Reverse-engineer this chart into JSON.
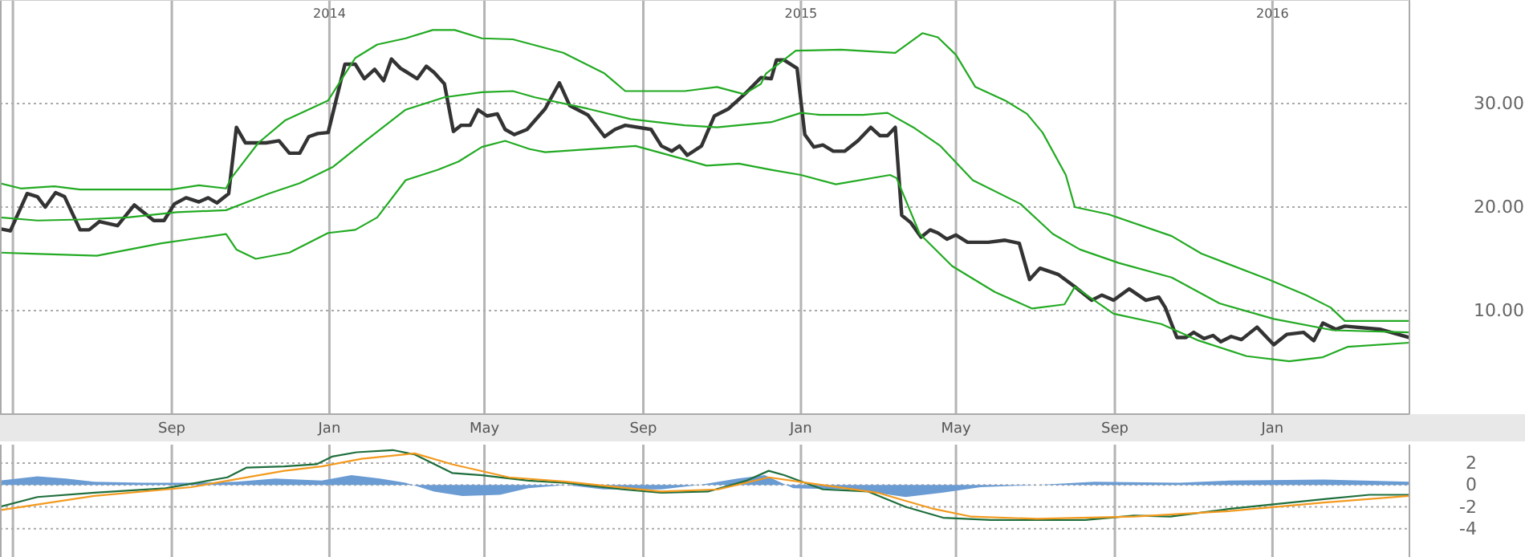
{
  "chart_data": [
    {
      "type": "line",
      "xlim": [
        "2013-04-21",
        "2016-04-16"
      ],
      "ylim": [
        0,
        40
      ],
      "xticks": [
        {
          "value": "2013-05-01",
          "label": null
        },
        {
          "value": "2013-09-01",
          "label": "Sep"
        },
        {
          "value": "2014-01-01",
          "label": "Jan"
        },
        {
          "value": "2014-05-01",
          "label": "May"
        },
        {
          "value": "2014-09-01",
          "label": "Sep"
        },
        {
          "value": "2015-01-01",
          "label": "Jan"
        },
        {
          "value": "2015-05-01",
          "label": "May"
        },
        {
          "value": "2015-09-01",
          "label": "Sep"
        },
        {
          "value": "2016-01-01",
          "label": "Jan"
        }
      ],
      "x2lim": [
        "2013-04-21",
        "2016-04-16"
      ],
      "x2ticks": [
        {
          "value": "2014-01-01",
          "label": "2014"
        },
        {
          "value": "2015-01-01",
          "label": "2015"
        },
        {
          "value": "2016-01-01",
          "label": "2016"
        }
      ],
      "yticks": [
        {
          "value": 10,
          "label": "10.00"
        },
        {
          "value": 20,
          "label": "20.00"
        },
        {
          "value": 30,
          "label": "30.00"
        }
      ],
      "grid": true,
      "series": [
        {
          "color": "#333333",
          "x": [
            "2013-04-21",
            "2013-04-29",
            "2013-05-12",
            "2013-05-20",
            "2013-05-26",
            "2013-06-03",
            "2013-06-10",
            "2013-06-22",
            "2013-06-29",
            "2013-07-07",
            "2013-07-21",
            "2013-08-03",
            "2013-08-18",
            "2013-08-26",
            "2013-09-03",
            "2013-09-12",
            "2013-09-22",
            "2013-09-29",
            "2013-10-06",
            "2013-10-15",
            "2013-10-21",
            "2013-10-28",
            "2013-11-13",
            "2013-11-23",
            "2013-12-01",
            "2013-12-09",
            "2013-12-16",
            "2013-12-23",
            "2013-12-31",
            "2014-01-13",
            "2014-01-21",
            "2014-01-28",
            "2014-02-05",
            "2014-02-12",
            "2014-02-18",
            "2014-02-25",
            "2014-03-01",
            "2014-03-10",
            "2014-03-17",
            "2014-03-23",
            "2014-03-31",
            "2014-04-07",
            "2014-04-13",
            "2014-04-20",
            "2014-04-26",
            "2014-05-03",
            "2014-05-11",
            "2014-05-17",
            "2014-05-24",
            "2014-06-03",
            "2014-06-17",
            "2014-06-28",
            "2014-07-06",
            "2014-07-20",
            "2014-08-02",
            "2014-08-10",
            "2014-08-18",
            "2014-09-07",
            "2014-09-15",
            "2014-09-23",
            "2014-09-29",
            "2014-10-05",
            "2014-10-16",
            "2014-10-26",
            "2014-11-06",
            "2014-11-20",
            "2014-12-01",
            "2014-12-09",
            "2014-12-13",
            "2014-12-19",
            "2014-12-29",
            "2015-01-04",
            "2015-01-11",
            "2015-01-18",
            "2015-01-26",
            "2015-02-04",
            "2015-02-14",
            "2015-02-24",
            "2015-03-03",
            "2015-03-09",
            "2015-03-15",
            "2015-03-20",
            "2015-03-27",
            "2015-04-04",
            "2015-04-11",
            "2015-04-17",
            "2015-04-24",
            "2015-05-01",
            "2015-05-10",
            "2015-05-26",
            "2015-06-08",
            "2015-06-19",
            "2015-06-27",
            "2015-07-05",
            "2015-07-19",
            "2015-08-01",
            "2015-08-14",
            "2015-08-22",
            "2015-08-31",
            "2015-09-12",
            "2015-09-25",
            "2015-10-05",
            "2015-10-10",
            "2015-10-19",
            "2015-10-26",
            "2015-11-01",
            "2015-11-09",
            "2015-11-16",
            "2015-11-22",
            "2015-11-30",
            "2015-12-08",
            "2015-12-20",
            "2016-01-02",
            "2016-01-12",
            "2016-01-25",
            "2016-02-02",
            "2016-02-09",
            "2016-02-19",
            "2016-02-26",
            "2016-03-24",
            "2016-04-16"
          ],
          "values": [
            17.9,
            17.7,
            21.3,
            21.0,
            20.0,
            21.4,
            21.0,
            17.8,
            17.8,
            18.6,
            18.2,
            20.2,
            18.7,
            18.7,
            20.3,
            20.9,
            20.5,
            20.9,
            20.4,
            21.3,
            27.7,
            26.2,
            26.2,
            26.4,
            25.2,
            25.2,
            26.8,
            27.1,
            27.2,
            33.8,
            33.8,
            32.4,
            33.3,
            32.2,
            34.3,
            33.4,
            33.1,
            32.4,
            33.6,
            33.0,
            31.9,
            27.3,
            27.9,
            27.9,
            29.4,
            28.8,
            29.0,
            27.5,
            27.0,
            27.5,
            29.5,
            32.0,
            29.8,
            28.9,
            26.8,
            27.5,
            27.9,
            27.5,
            25.9,
            25.4,
            25.9,
            25.0,
            25.9,
            28.8,
            29.5,
            31.1,
            32.5,
            32.4,
            34.2,
            34.2,
            33.4,
            27.0,
            25.8,
            26.0,
            25.4,
            25.4,
            26.4,
            27.7,
            26.9,
            26.9,
            27.7,
            19.2,
            18.5,
            17.1,
            17.8,
            17.5,
            16.9,
            17.3,
            16.6,
            16.6,
            16.8,
            16.5,
            13.0,
            14.1,
            13.5,
            12.3,
            11.0,
            11.5,
            11.0,
            12.1,
            11.0,
            11.3,
            10.3,
            7.4,
            7.4,
            7.9,
            7.3,
            7.6,
            7.0,
            7.5,
            7.2,
            8.4,
            6.7,
            7.7,
            7.9,
            7.1,
            8.8,
            8.2,
            8.5,
            8.2,
            7.4
          ]
        },
        {
          "color": "#22aa22",
          "x": [
            "2013-04-21",
            "2013-05-07",
            "2013-06-02",
            "2013-06-22",
            "2013-09-01",
            "2013-09-22",
            "2013-10-13",
            "2013-10-17",
            "2013-11-07",
            "2013-11-28",
            "2013-12-31",
            "2014-01-21",
            "2014-02-07",
            "2014-03-01",
            "2014-03-22",
            "2014-04-08",
            "2014-04-29",
            "2014-05-23",
            "2014-07-01",
            "2014-08-02",
            "2014-08-18",
            "2014-10-03",
            "2014-10-28",
            "2014-11-18",
            "2014-12-01",
            "2014-12-05",
            "2014-12-28",
            "2015-02-01",
            "2015-03-15",
            "2015-04-05",
            "2015-04-17",
            "2015-05-01",
            "2015-05-16",
            "2015-06-08",
            "2015-06-25",
            "2015-07-07",
            "2015-07-25",
            "2015-08-01",
            "2015-08-27",
            "2015-10-15",
            "2015-11-07",
            "2015-12-29",
            "2016-01-27",
            "2016-02-15",
            "2016-02-26",
            "2016-04-16"
          ],
          "values": [
            22.3,
            21.8,
            22.0,
            21.7,
            21.7,
            22.1,
            21.8,
            22.8,
            26.2,
            28.4,
            30.3,
            34.4,
            35.7,
            36.3,
            37.1,
            37.1,
            36.3,
            36.2,
            34.9,
            32.9,
            31.2,
            31.2,
            31.6,
            30.9,
            31.9,
            32.9,
            35.1,
            35.2,
            34.9,
            36.8,
            36.4,
            34.7,
            31.6,
            30.3,
            29.0,
            27.2,
            23.1,
            20.0,
            19.3,
            17.2,
            15.5,
            13.0,
            11.5,
            10.3,
            9.0,
            9.0
          ]
        },
        {
          "color": "#22aa22",
          "x": [
            "2013-04-21",
            "2013-05-20",
            "2013-06-22",
            "2013-07-29",
            "2013-09-05",
            "2013-10-13",
            "2013-11-15",
            "2013-12-09",
            "2014-01-04",
            "2014-01-29",
            "2014-03-01",
            "2014-03-31",
            "2014-04-29",
            "2014-05-23",
            "2014-06-09",
            "2014-07-20",
            "2014-08-22",
            "2014-10-03",
            "2014-10-28",
            "2014-12-09",
            "2015-01-01",
            "2015-01-16",
            "2015-02-18",
            "2015-03-09",
            "2015-03-29",
            "2015-04-19",
            "2015-05-14",
            "2015-06-20",
            "2015-07-15",
            "2015-08-05",
            "2015-09-04",
            "2015-10-15",
            "2015-11-21",
            "2016-01-02",
            "2016-02-17",
            "2016-04-16"
          ],
          "values": [
            19.0,
            18.7,
            18.8,
            19.0,
            19.5,
            19.7,
            21.3,
            22.3,
            23.9,
            26.4,
            29.4,
            30.6,
            31.1,
            31.2,
            30.6,
            29.5,
            28.5,
            27.9,
            27.7,
            28.2,
            29.1,
            28.9,
            28.9,
            29.1,
            27.7,
            25.9,
            22.6,
            20.3,
            17.4,
            15.9,
            14.6,
            13.2,
            10.7,
            9.2,
            8.1,
            7.9
          ]
        },
        {
          "color": "#22aa22",
          "x": [
            "2013-04-21",
            "2013-05-16",
            "2013-07-05",
            "2013-08-24",
            "2013-10-13",
            "2013-10-21",
            "2013-11-05",
            "2013-12-01",
            "2013-12-31",
            "2014-01-21",
            "2014-02-07",
            "2014-03-01",
            "2014-03-26",
            "2014-04-11",
            "2014-04-29",
            "2014-05-17",
            "2014-06-05",
            "2014-06-17",
            "2014-08-26",
            "2014-10-03",
            "2014-10-20",
            "2014-11-14",
            "2014-12-09",
            "2015-01-01",
            "2015-01-28",
            "2015-03-11",
            "2015-03-16",
            "2015-04-03",
            "2015-04-28",
            "2015-05-31",
            "2015-06-29",
            "2015-07-24",
            "2015-08-01",
            "2015-08-31",
            "2015-10-07",
            "2015-11-05",
            "2015-12-12",
            "2016-01-14",
            "2016-02-09",
            "2016-02-28",
            "2016-04-16"
          ],
          "values": [
            15.6,
            15.5,
            15.3,
            16.5,
            17.4,
            15.9,
            15.0,
            15.6,
            17.5,
            17.8,
            19.0,
            22.6,
            23.6,
            24.4,
            25.8,
            26.4,
            25.6,
            25.3,
            25.9,
            24.6,
            24.0,
            24.2,
            23.6,
            23.1,
            22.2,
            23.1,
            22.8,
            17.4,
            14.3,
            11.8,
            10.2,
            10.6,
            12.3,
            9.7,
            8.7,
            7.1,
            5.6,
            5.1,
            5.5,
            6.5,
            6.9
          ]
        }
      ]
    },
    {
      "type": "line",
      "xlim": [
        "2013-04-21",
        "2016-04-16"
      ],
      "ylim": [
        -6.6,
        3.7
      ],
      "xticks": [
        {
          "value": "2013-05-01",
          "label": null
        },
        {
          "value": "2013-09-01",
          "label": null
        },
        {
          "value": "2014-01-01",
          "label": null
        },
        {
          "value": "2014-05-01",
          "label": null
        },
        {
          "value": "2014-09-01",
          "label": null
        },
        {
          "value": "2015-01-01",
          "label": null
        },
        {
          "value": "2015-05-01",
          "label": null
        },
        {
          "value": "2015-09-01",
          "label": null
        },
        {
          "value": "2016-01-01",
          "label": null
        }
      ],
      "yticks": [
        -4,
        -2,
        0,
        2
      ],
      "grid": true,
      "tick_labels": "y",
      "series": [
        {
          "type": "area",
          "color": "#6a9bd3",
          "x": [
            "2013-04-21",
            "2013-05-20",
            "2013-06-11",
            "2013-07-03",
            "2013-08-09",
            "2013-09-16",
            "2013-10-21",
            "2013-11-20",
            "2013-12-26",
            "2014-01-18",
            "2014-02-09",
            "2014-03-01",
            "2014-03-23",
            "2014-04-14",
            "2014-05-13",
            "2014-06-04",
            "2014-07-03",
            "2014-08-01",
            "2014-09-15",
            "2014-10-14",
            "2014-11-13",
            "2014-12-04",
            "2014-12-26",
            "2015-02-09",
            "2015-03-23",
            "2015-04-21",
            "2015-05-20",
            "2015-07-03",
            "2015-08-16",
            "2015-10-21",
            "2015-11-28",
            "2016-02-10",
            "2016-04-16"
          ],
          "values": [
            0.4,
            0.8,
            0.6,
            0.3,
            0.2,
            0.2,
            0.3,
            0.6,
            0.4,
            0.9,
            0.6,
            0.2,
            -0.6,
            -1.0,
            -0.9,
            -0.3,
            0,
            -0.4,
            -0.4,
            0,
            0.6,
            0.9,
            -0.3,
            -0.4,
            -1.1,
            -0.7,
            -0.2,
            0,
            0.3,
            0.2,
            0.4,
            0.5,
            0.3
          ]
        },
        {
          "color": "#1e6e3c",
          "x": [
            "2013-04-21",
            "2013-05-20",
            "2013-07-03",
            "2013-08-27",
            "2013-10-14",
            "2013-10-29",
            "2013-11-27",
            "2013-12-22",
            "2014-01-03",
            "2014-01-22",
            "2014-02-19",
            "2014-03-08",
            "2014-04-06",
            "2014-04-29",
            "2014-06-04",
            "2014-07-03",
            "2014-08-16",
            "2014-09-15",
            "2014-10-21",
            "2014-11-20",
            "2014-12-07",
            "2014-12-19",
            "2015-01-18",
            "2015-02-22",
            "2015-03-23",
            "2015-04-21",
            "2015-05-28",
            "2015-08-09",
            "2015-09-16",
            "2015-10-14",
            "2015-11-28",
            "2016-02-10",
            "2016-03-16",
            "2016-04-16"
          ],
          "values": [
            -2.0,
            -1.1,
            -0.7,
            -0.3,
            0.7,
            1.6,
            1.7,
            1.9,
            2.6,
            3.0,
            3.2,
            2.8,
            1.1,
            0.9,
            0.4,
            0.2,
            -0.4,
            -0.7,
            -0.6,
            0.4,
            1.3,
            0.9,
            -0.4,
            -0.6,
            -2.0,
            -3.0,
            -3.2,
            -3.2,
            -2.8,
            -2.9,
            -2.2,
            -1.3,
            -0.9,
            -0.9
          ]
        },
        {
          "color": "#f39a1e",
          "x": [
            "2013-04-21",
            "2013-07-03",
            "2013-09-16",
            "2013-11-27",
            "2013-12-26",
            "2014-01-26",
            "2014-03-08",
            "2014-04-06",
            "2014-05-20",
            "2014-07-03",
            "2014-09-15",
            "2014-10-29",
            "2014-12-07",
            "2015-01-18",
            "2015-03-01",
            "2015-04-14",
            "2015-05-13",
            "2015-07-03",
            "2015-09-16",
            "2015-11-28",
            "2016-02-10",
            "2016-04-16"
          ],
          "values": [
            -2.3,
            -1.0,
            -0.2,
            1.3,
            1.7,
            2.4,
            2.9,
            1.9,
            0.7,
            0.3,
            -0.6,
            -0.4,
            0.7,
            0.0,
            -0.7,
            -2.2,
            -2.9,
            -3.1,
            -2.9,
            -2.4,
            -1.6,
            -1.0
          ]
        }
      ]
    }
  ]
}
